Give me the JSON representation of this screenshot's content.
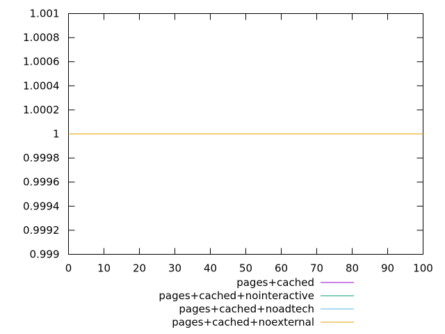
{
  "chart_data": {
    "type": "line",
    "title": "",
    "xlabel": "",
    "ylabel": "",
    "xlim": [
      0,
      100
    ],
    "ylim": [
      0.999,
      1.001
    ],
    "grid": false,
    "legend_position": "bottom-center",
    "x_ticks": [
      0,
      10,
      20,
      30,
      40,
      50,
      60,
      70,
      80,
      90,
      100
    ],
    "x_tick_labels": [
      "0",
      "10",
      "20",
      "30",
      "40",
      "50",
      "60",
      "70",
      "80",
      "90",
      "100"
    ],
    "y_ticks": [
      0.999,
      0.9992,
      0.9994,
      0.9996,
      0.9998,
      1,
      1.0002,
      1.0004,
      1.0006,
      1.0008,
      1.001
    ],
    "y_tick_labels": [
      "0.999",
      "0.9992",
      "0.9994",
      "0.9996",
      "0.9998",
      "1",
      "1.0002",
      "1.0004",
      "1.0006",
      "1.0008",
      "1.001"
    ],
    "series": [
      {
        "name": "pages+cached",
        "color": "#9400d3",
        "x": [
          0,
          100
        ],
        "y": [
          1,
          1
        ]
      },
      {
        "name": "pages+cached+nointeractive",
        "color": "#009e73",
        "x": [
          0,
          100
        ],
        "y": [
          1,
          1
        ]
      },
      {
        "name": "pages+cached+noadtech",
        "color": "#56b4e9",
        "x": [
          0,
          100
        ],
        "y": [
          1,
          1
        ]
      },
      {
        "name": "pages+cached+noexternal",
        "color": "#e69f00",
        "x": [
          0,
          100
        ],
        "y": [
          1,
          1
        ]
      }
    ]
  }
}
